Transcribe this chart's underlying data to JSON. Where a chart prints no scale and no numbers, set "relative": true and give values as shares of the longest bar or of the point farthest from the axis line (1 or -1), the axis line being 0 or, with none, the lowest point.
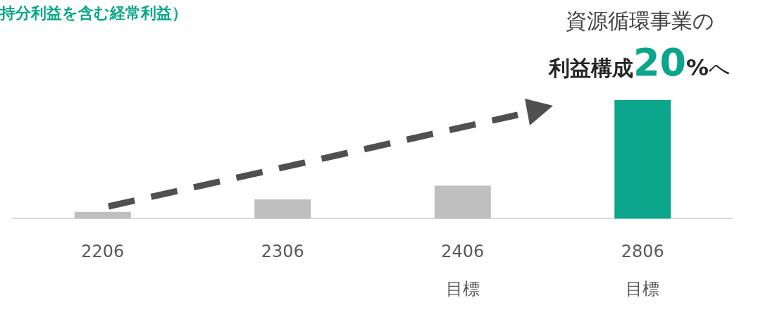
{
  "chart_data": {
    "type": "bar",
    "title": "持分利益を含む経常利益）",
    "categories": [
      "2206",
      "2306",
      "2406\n目標",
      "2806\n目標"
    ],
    "values": [
      0.058,
      0.163,
      0.279,
      1
    ],
    "colors": [
      "#bfbfbf",
      "#bfbfbf",
      "#bfbfbf",
      "#0aa58a"
    ],
    "relative": true,
    "grid": false,
    "annotations": [
      "資源循環事業の",
      "利益構成20%へ"
    ]
  }
}
